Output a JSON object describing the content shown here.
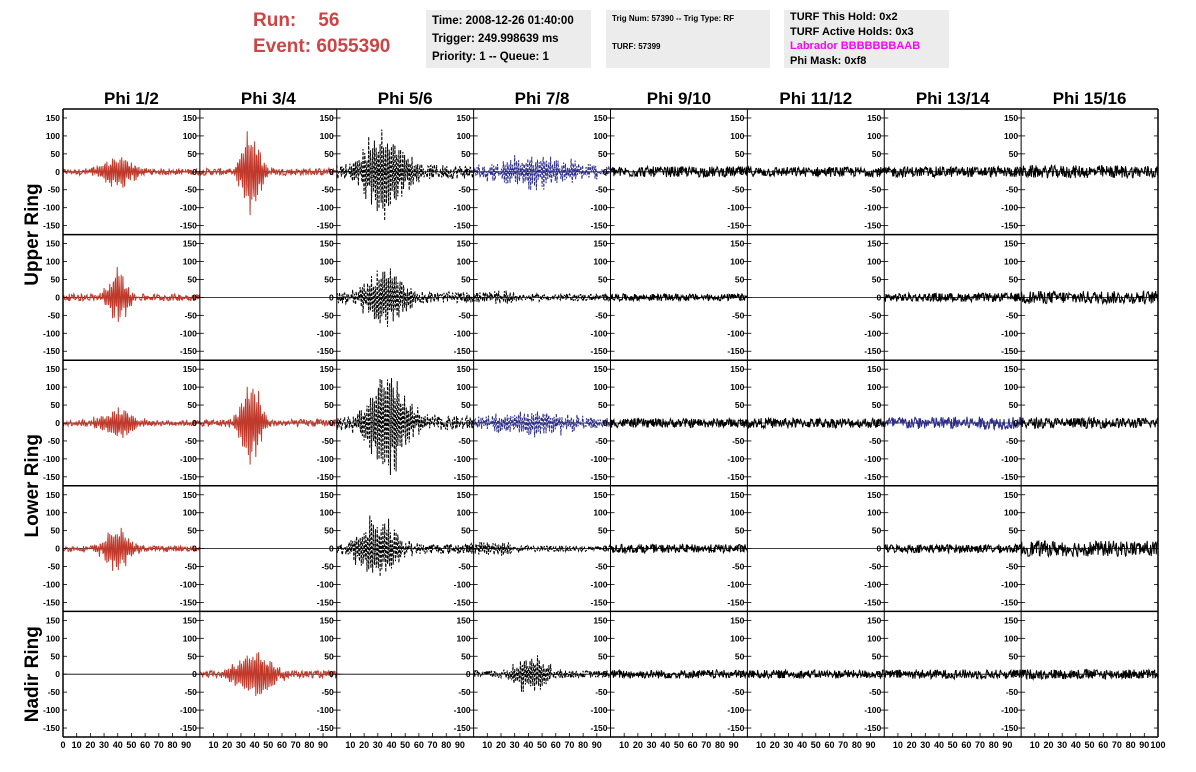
{
  "header": {
    "run_label": "Run:",
    "run_value": "56",
    "event_label": "Event:",
    "event_value": "6055390",
    "time_line": "Time: 2008-12-26 01:40:00",
    "trigger_line": "Trigger: 249.998639 ms",
    "priority_line": "Priority: 1 -- Queue: 1",
    "trig_line": "Trig Num: 57390 -- Trig Type: RF",
    "turf_line": "TURF: 57399",
    "turf_hold_line": "TURF This Hold: 0x2",
    "turf_active_line": "TURF Active Holds: 0x3",
    "labrador_line": "Labrador BBBBBBBAAB",
    "phi_mask_line": "Phi Mask: 0xf8"
  },
  "colors": {
    "red": "#c0392b",
    "blue": "#2c2c8c",
    "black": "#000000",
    "header_red": "#cc4444",
    "labrador": "#ff00ff",
    "box_bg": "#ececec"
  },
  "chart_data": {
    "type": "line",
    "columns": [
      "Phi 1/2",
      "Phi 3/4",
      "Phi 5/6",
      "Phi 7/8",
      "Phi 9/10",
      "Phi 11/12",
      "Phi 13/14",
      "Phi 15/16"
    ],
    "ring_labels": [
      "Upper Ring",
      "Lower Ring",
      "Nadir Ring"
    ],
    "ylim": [
      -175,
      175
    ],
    "xlim": [
      0,
      100
    ],
    "y_ticks": [
      -150,
      -100,
      -50,
      0,
      50,
      100,
      150
    ],
    "x_tick_labels": [
      "0",
      "10",
      "20",
      "30",
      "40",
      "50",
      "60",
      "70",
      "80",
      "90",
      "100"
    ],
    "rows": [
      [
        {
          "color": "red",
          "amp": 45,
          "center": 40,
          "width": 11,
          "noise": 8
        },
        {
          "color": "red",
          "amp": 120,
          "center": 37,
          "width": 6,
          "noise": 10
        },
        {
          "color": "black",
          "amp": 130,
          "center": 35,
          "width": 12,
          "noise": 20,
          "dashed": true
        },
        {
          "color": "blue",
          "amp": 45,
          "center": 45,
          "width": 25,
          "noise": 15,
          "dashed": true
        },
        {
          "color": "black",
          "amp": 0,
          "noise": 15
        },
        {
          "color": "black",
          "amp": 0,
          "noise": 14
        },
        {
          "color": "black",
          "amp": 0,
          "noise": 15
        },
        {
          "color": "black",
          "amp": 0,
          "noise": 18
        }
      ],
      [
        {
          "color": "red",
          "amp": 85,
          "center": 40,
          "width": 6,
          "noise": 10
        },
        {
          "color": "black",
          "amp": 0,
          "noise": 0
        },
        {
          "color": "black",
          "amp": 85,
          "center": 35,
          "width": 12,
          "noise": 15,
          "dashed": true
        },
        {
          "color": "black",
          "amp": 15,
          "center": 15,
          "width": 15,
          "noise": 10,
          "dashed": true
        },
        {
          "color": "black",
          "amp": 0,
          "noise": 10
        },
        {
          "color": "black",
          "amp": 0,
          "noise": 0
        },
        {
          "color": "black",
          "amp": 0,
          "noise": 12
        },
        {
          "color": "black",
          "amp": 0,
          "noise": 18
        }
      ],
      [
        {
          "color": "red",
          "amp": 40,
          "center": 40,
          "width": 11,
          "noise": 8
        },
        {
          "color": "red",
          "amp": 130,
          "center": 37,
          "width": 6,
          "noise": 10
        },
        {
          "color": "black",
          "amp": 160,
          "center": 37,
          "width": 12,
          "noise": 20,
          "dashed": true
        },
        {
          "color": "blue",
          "amp": 35,
          "center": 45,
          "width": 25,
          "noise": 12,
          "dashed": true
        },
        {
          "color": "black",
          "amp": 0,
          "noise": 13
        },
        {
          "color": "black",
          "amp": 0,
          "noise": 14
        },
        {
          "color": "blue",
          "amp": 0,
          "noise": 18
        },
        {
          "color": "black",
          "amp": 0,
          "noise": 15
        }
      ],
      [
        {
          "color": "red",
          "amp": 65,
          "center": 40,
          "width": 8,
          "noise": 8
        },
        {
          "color": "black",
          "amp": 0,
          "noise": 0
        },
        {
          "color": "black",
          "amp": 95,
          "center": 30,
          "width": 12,
          "noise": 15,
          "dashed": true
        },
        {
          "color": "black",
          "amp": 20,
          "center": 15,
          "width": 12,
          "noise": 8,
          "dashed": true
        },
        {
          "color": "black",
          "amp": 0,
          "noise": 12
        },
        {
          "color": "black",
          "amp": 0,
          "noise": 0
        },
        {
          "color": "black",
          "amp": 0,
          "noise": 12
        },
        {
          "color": "black",
          "amp": 0,
          "noise": 22
        }
      ],
      [
        {
          "color": "red",
          "amp": 0,
          "noise": 0
        },
        {
          "color": "red",
          "amp": 75,
          "center": 40,
          "width": 11,
          "noise": 10
        },
        {
          "color": "black",
          "amp": 0,
          "noise": 0
        },
        {
          "color": "black",
          "amp": 55,
          "center": 42,
          "width": 10,
          "noise": 10,
          "dashed": true
        },
        {
          "color": "black",
          "amp": 0,
          "noise": 12
        },
        {
          "color": "black",
          "amp": 0,
          "noise": 12
        },
        {
          "color": "black",
          "amp": 0,
          "noise": 13
        },
        {
          "color": "black",
          "amp": 0,
          "noise": 14
        }
      ]
    ]
  }
}
